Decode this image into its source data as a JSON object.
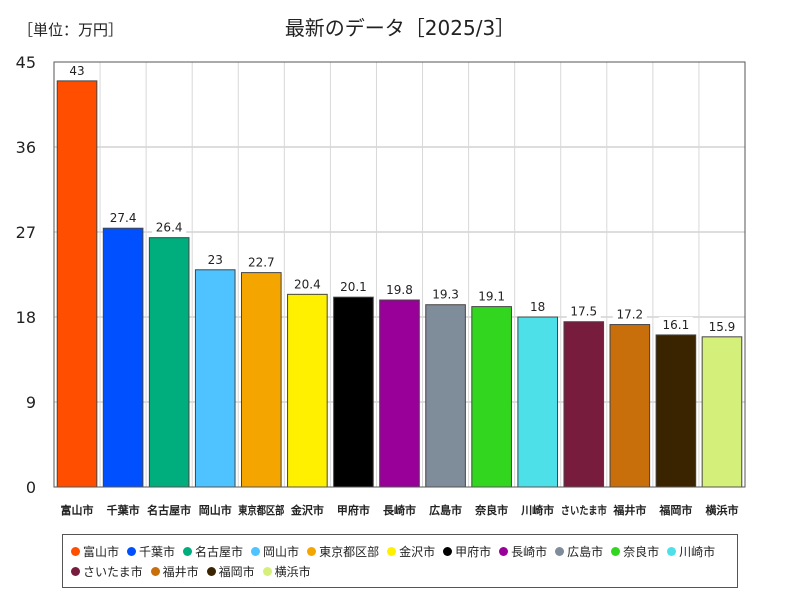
{
  "chart_data": {
    "type": "bar",
    "title": "最新のデータ［2025/3］",
    "unit_label": "［単位：万円］",
    "ylim": [
      0,
      45
    ],
    "yticks": [
      0,
      9,
      18,
      27,
      36,
      45
    ],
    "grid": true,
    "legend_position": "bottom",
    "categories": [
      "富山市",
      "千葉市",
      "名古屋市",
      "岡山市",
      "東京都区部",
      "金沢市",
      "甲府市",
      "長崎市",
      "広島市",
      "奈良市",
      "川崎市",
      "さいたま市",
      "福井市",
      "福岡市",
      "横浜市"
    ],
    "values": [
      43,
      27.4,
      26.4,
      23,
      22.7,
      20.4,
      20.1,
      19.8,
      19.3,
      19.1,
      18,
      17.5,
      17.2,
      16.1,
      15.9
    ],
    "value_labels": [
      "43",
      "27.4",
      "26.4",
      "23",
      "22.7",
      "20.4",
      "20.1",
      "19.8",
      "19.3",
      "19.1",
      "18",
      "17.5",
      "17.2",
      "16.1",
      "15.9"
    ],
    "colors": [
      "#ff4e00",
      "#0050ff",
      "#00ad7c",
      "#4ec3ff",
      "#f5a500",
      "#fff000",
      "#000000",
      "#990099",
      "#7f8c99",
      "#33d61f",
      "#4ee0e8",
      "#771c3c",
      "#c86f0c",
      "#3a2400",
      "#d5f07a"
    ]
  }
}
